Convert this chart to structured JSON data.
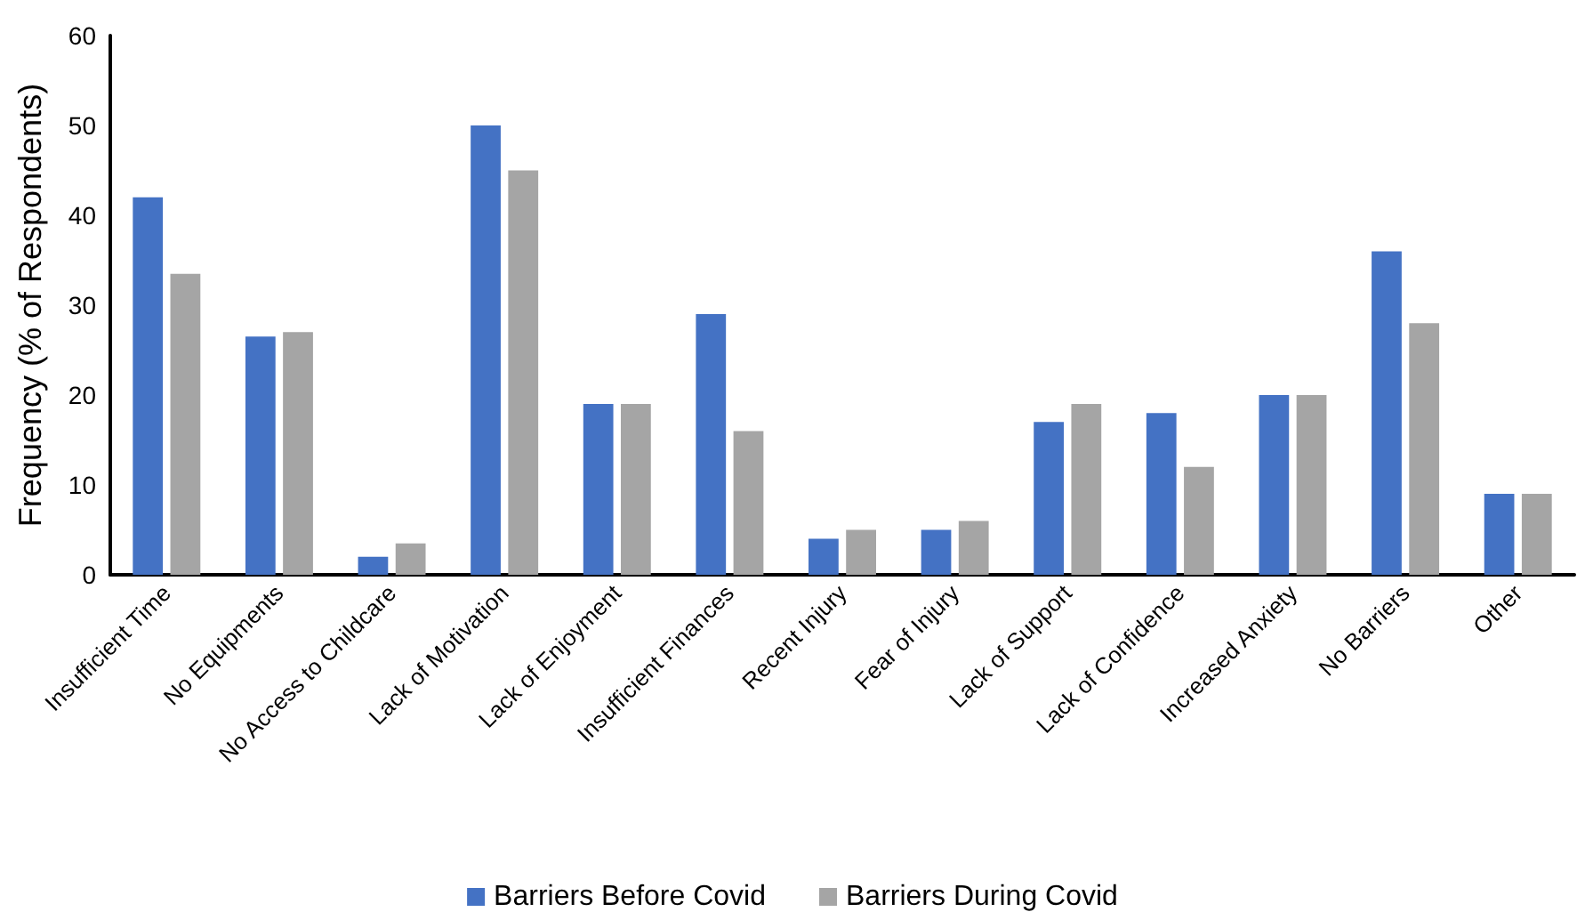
{
  "chart_data": {
    "type": "bar",
    "ylabel": "Frequency (% of Respondents)",
    "categories": [
      "Insufficient Time",
      "No Equipments",
      "No Access to Childcare",
      "Lack of Motivation",
      "Lack of Enjoyment",
      "Insufficient Finances",
      "Recent Injury",
      "Fear of Injury",
      "Lack of Support",
      "Lack of Confidence",
      "Increased Anxiety",
      "No Barriers",
      "Other"
    ],
    "series": [
      {
        "name": "Barriers Before Covid",
        "color": "#4472c4",
        "values": [
          42,
          26.5,
          2,
          50,
          19,
          29,
          4,
          5,
          17,
          18,
          20,
          36,
          9
        ]
      },
      {
        "name": "Barriers During Covid",
        "color": "#a5a5a5",
        "values": [
          33.5,
          27,
          3.5,
          45,
          19,
          16,
          5,
          6,
          19,
          12,
          20,
          28,
          9
        ]
      }
    ],
    "ylim": [
      0,
      60
    ],
    "yticks": [
      0,
      10,
      20,
      30,
      40,
      50,
      60
    ],
    "grid": false,
    "legend": "bottom"
  }
}
